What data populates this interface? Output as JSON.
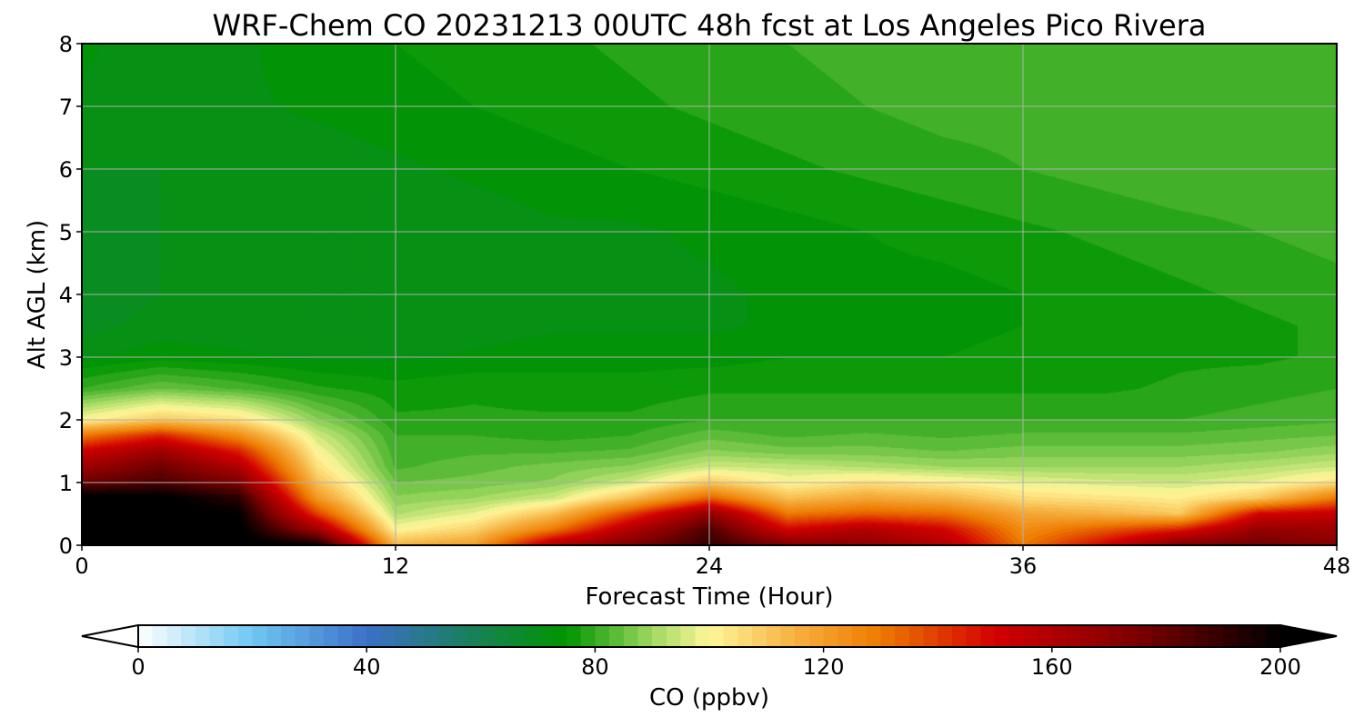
{
  "chart_data": {
    "type": "heatmap",
    "title": "WRF-Chem CO  20231213 00UTC 48h fcst at Los Angeles Pico Rivera",
    "xlabel": "Forecast Time (Hour)",
    "ylabel": "Alt AGL (km)",
    "xlim": [
      0,
      48
    ],
    "ylim": [
      0,
      8
    ],
    "x_ticks": [
      0,
      12,
      24,
      36,
      48
    ],
    "y_ticks": [
      0,
      1,
      2,
      3,
      4,
      5,
      6,
      7,
      8
    ],
    "grid": true,
    "x": [
      0,
      3,
      6,
      9,
      12,
      15,
      18,
      21,
      24,
      27,
      30,
      33,
      36,
      39,
      42,
      45,
      48
    ],
    "y": [
      0,
      0.25,
      0.5,
      0.75,
      1,
      1.25,
      1.5,
      1.75,
      2,
      2.5,
      3,
      3.5,
      4,
      5,
      6,
      7,
      8
    ],
    "co_ppbv": [
      [
        205,
        205,
        204,
        200,
        115,
        120,
        160,
        175,
        190,
        175,
        170,
        160,
        130,
        150,
        175,
        178,
        172
      ],
      [
        205,
        205,
        203,
        165,
        100,
        108,
        130,
        160,
        185,
        150,
        160,
        150,
        125,
        135,
        145,
        168,
        165
      ],
      [
        205,
        205,
        200,
        140,
        92,
        98,
        112,
        140,
        170,
        130,
        135,
        132,
        118,
        115,
        110,
        150,
        155
      ],
      [
        204,
        203,
        192,
        122,
        88,
        90,
        95,
        112,
        135,
        112,
        118,
        115,
        106,
        104,
        102,
        110,
        130
      ],
      [
        180,
        185,
        175,
        112,
        85,
        86,
        88,
        95,
        110,
        100,
        105,
        102,
        98,
        96,
        95,
        98,
        105
      ],
      [
        165,
        178,
        160,
        105,
        82,
        84,
        86,
        88,
        95,
        94,
        92,
        90,
        90,
        90,
        90,
        92,
        95
      ],
      [
        152,
        165,
        145,
        100,
        81,
        82,
        82,
        83,
        88,
        86,
        86,
        85,
        86,
        86,
        86,
        87,
        89
      ],
      [
        130,
        145,
        125,
        95,
        80,
        80,
        79,
        80,
        84,
        82,
        83,
        82,
        83,
        83,
        83,
        84,
        85
      ],
      [
        100,
        110,
        105,
        88,
        78,
        78,
        78,
        78,
        80,
        80,
        80,
        80,
        80,
        80,
        80,
        81,
        82
      ],
      [
        80,
        85,
        82,
        78,
        76,
        77,
        76,
        76,
        77,
        77,
        77,
        77,
        77,
        77,
        78,
        79,
        80
      ],
      [
        72,
        74,
        73,
        72,
        72,
        73,
        74,
        74,
        74,
        75,
        75,
        75,
        76,
        76,
        77,
        77,
        78
      ],
      [
        69,
        71,
        71,
        70,
        70,
        71,
        72,
        72,
        72,
        73,
        74,
        74,
        75,
        75,
        76,
        77,
        78
      ],
      [
        68,
        70,
        71,
        70,
        70,
        70,
        71,
        72,
        72,
        73,
        74,
        74,
        75,
        76,
        77,
        78,
        79
      ],
      [
        69,
        70,
        70,
        70,
        70,
        71,
        72,
        72,
        73,
        74,
        75,
        76,
        77,
        78,
        79,
        80,
        81
      ],
      [
        70,
        70,
        71,
        71,
        72,
        73,
        74,
        75,
        76,
        77,
        78,
        79,
        80,
        81,
        82,
        82,
        82
      ],
      [
        72,
        71,
        72,
        73,
        74,
        75,
        76,
        77,
        78,
        79,
        80,
        81,
        81,
        82,
        82,
        82,
        82
      ],
      [
        73,
        71,
        72,
        74,
        75,
        76,
        77,
        78,
        79,
        80,
        81,
        82,
        82,
        82,
        82,
        82,
        82
      ]
    ],
    "colorbar": {
      "label": "CO  (ppbv)",
      "ticks": [
        0,
        40,
        80,
        120,
        160,
        200
      ],
      "range": [
        0,
        200
      ],
      "extend": "both",
      "colormap_stops": [
        {
          "v": 0,
          "color": "#ffffff"
        },
        {
          "v": 20,
          "color": "#6fc8f2"
        },
        {
          "v": 40,
          "color": "#3c6fc8"
        },
        {
          "v": 60,
          "color": "#168250"
        },
        {
          "v": 75,
          "color": "#009400"
        },
        {
          "v": 90,
          "color": "#9ed860"
        },
        {
          "v": 100,
          "color": "#fff79a"
        },
        {
          "v": 115,
          "color": "#f6b040"
        },
        {
          "v": 130,
          "color": "#ee7a00"
        },
        {
          "v": 150,
          "color": "#d20000"
        },
        {
          "v": 175,
          "color": "#7c0000"
        },
        {
          "v": 200,
          "color": "#000000"
        }
      ],
      "under_color": "#ffffff",
      "over_color": "#000000"
    }
  }
}
